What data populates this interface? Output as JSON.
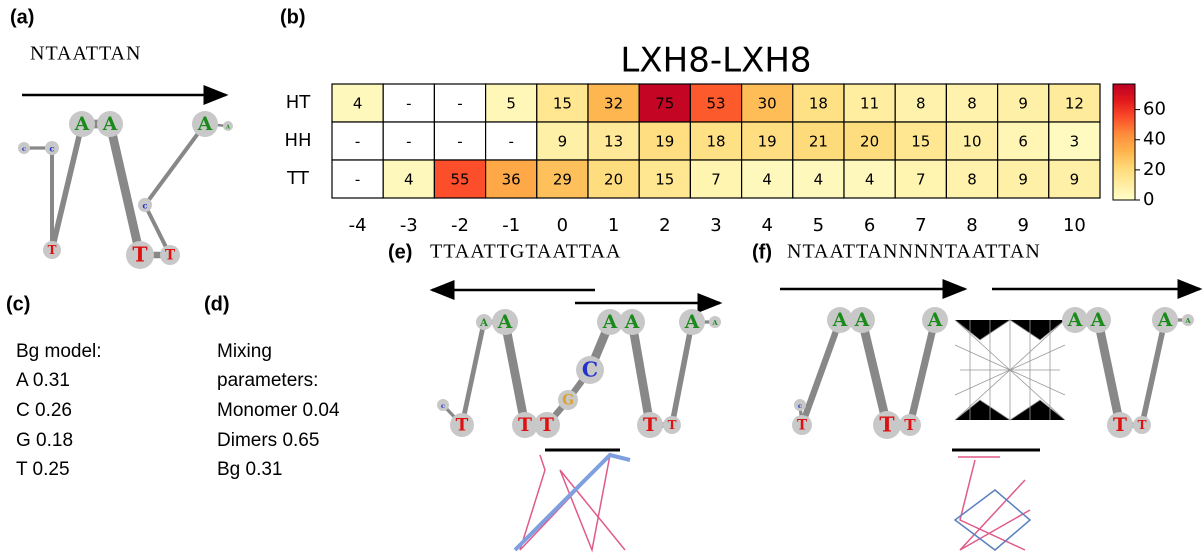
{
  "chart_data": {
    "type": "heatmap",
    "title": "LXH8-LXH8",
    "colormap": "YlOrRd",
    "categories": [
      -4,
      -3,
      -2,
      -1,
      0,
      1,
      2,
      3,
      4,
      5,
      6,
      7,
      8,
      9,
      10
    ],
    "series": [
      {
        "name": "HT",
        "values": [
          4,
          null,
          null,
          5,
          15,
          32,
          75,
          53,
          30,
          18,
          11,
          8,
          8,
          9,
          12
        ],
        "value_labels": [
          "4",
          "-",
          "-",
          "5",
          "15",
          "32",
          "75",
          "53",
          "30",
          "18",
          "11",
          "8",
          "8",
          "9",
          "12"
        ]
      },
      {
        "name": "HH",
        "values": [
          null,
          null,
          null,
          null,
          9,
          13,
          19,
          18,
          19,
          21,
          20,
          15,
          10,
          6,
          3
        ],
        "value_labels": [
          "-",
          "-",
          "-",
          "-",
          "9",
          "13",
          "19",
          "18",
          "19",
          "21",
          "20",
          "15",
          "10",
          "6",
          "3"
        ]
      },
      {
        "name": "TT",
        "values": [
          null,
          4,
          55,
          36,
          29,
          20,
          15,
          7,
          4,
          4,
          4,
          7,
          8,
          9,
          9
        ],
        "value_labels": [
          "-",
          "4",
          "55",
          "36",
          "29",
          "20",
          "15",
          "7",
          "4",
          "4",
          "4",
          "7",
          "8",
          "9",
          "9"
        ]
      }
    ],
    "clim": [
      0,
      77
    ],
    "cticks": [
      0,
      20,
      40,
      60
    ]
  },
  "panel_b": {
    "label": "(b)"
  },
  "panel_a": {
    "label": "(a)",
    "sequence": "NTAATTAN",
    "nodes": [
      "c",
      "c",
      "T",
      "A",
      "A",
      "T",
      "T",
      "c",
      "A",
      "A"
    ]
  },
  "panel_c": {
    "label": "(c)",
    "lines": [
      "Bg model:",
      "A 0.31",
      "C 0.26",
      "G 0.18",
      "T  0.25"
    ]
  },
  "panel_d": {
    "label": "(d)",
    "lines": [
      "Mixing",
      "parameters:",
      "Monomer 0.04",
      "Dimers 0.65",
      "Bg 0.31"
    ]
  },
  "panel_e": {
    "label": "(e)",
    "sequence": "TTAATTGTAATTAA",
    "nodes": [
      "c",
      "T",
      "A",
      "A",
      "T",
      "T",
      "G",
      "C",
      "A",
      "A",
      "T",
      "T",
      "A",
      "A"
    ]
  },
  "panel_f": {
    "label": "(f)",
    "sequence": "NTAATTANNNNTAATTAN",
    "nodes": [
      "c",
      "T",
      "A",
      "A",
      "T",
      "T",
      "A",
      "A",
      "A",
      "T",
      "T",
      "A",
      "A"
    ]
  }
}
